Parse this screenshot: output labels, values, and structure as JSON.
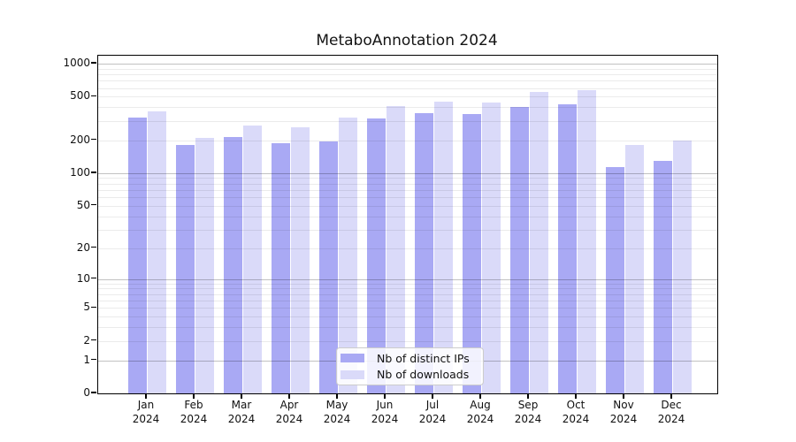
{
  "chart_data": {
    "type": "bar",
    "title": "MetaboAnnotation 2024",
    "y_scale": "symlog",
    "categories": [
      "Jan 2024",
      "Feb 2024",
      "Mar 2024",
      "Apr 2024",
      "May 2024",
      "Jun 2024",
      "Jul 2024",
      "Aug 2024",
      "Sep 2024",
      "Oct 2024",
      "Nov 2024",
      "Dec 2024"
    ],
    "x_tick_months": [
      "Jan",
      "Feb",
      "Mar",
      "Apr",
      "May",
      "Jun",
      "Jul",
      "Aug",
      "Sep",
      "Oct",
      "Nov",
      "Dec"
    ],
    "x_tick_year": "2024",
    "y_ticks": [
      0,
      1,
      2,
      5,
      10,
      20,
      50,
      100,
      200,
      500,
      1000
    ],
    "ylim": [
      0,
      1180
    ],
    "grid": true,
    "legend_position": "lower-center",
    "series": [
      {
        "name": "Nb of distinct IPs",
        "color": "#a9a9f4",
        "values": [
          320,
          180,
          215,
          188,
          195,
          314,
          355,
          348,
          400,
          427,
          114,
          130
        ]
      },
      {
        "name": "Nb of downloads",
        "color": "#dadaf9",
        "values": [
          365,
          212,
          272,
          265,
          323,
          413,
          450,
          444,
          555,
          576,
          182,
          199
        ]
      }
    ]
  }
}
